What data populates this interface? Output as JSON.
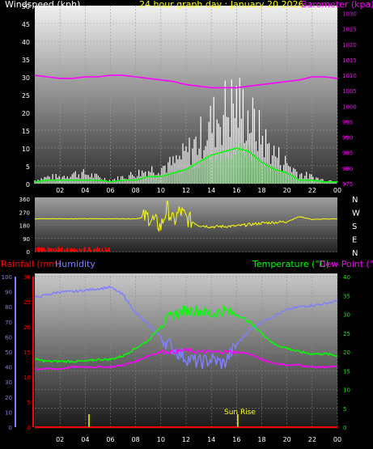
{
  "header": {
    "left_title": "Windspeed (kph)",
    "center_title": "24 hour graph day : January 20 2026",
    "right_title": "Barometer (kpa)"
  },
  "colors": {
    "windspeed": "#ffffff",
    "wind_avg": "#00ff00",
    "barometer": "#ff00ff",
    "direction": "#ffff00",
    "rainfall": "#ff0000",
    "humidity": "#7f7fff",
    "temperature": "#00ff00",
    "dewpoint": "#ff00ff",
    "title": "#ffff00"
  },
  "chart_data": [
    {
      "type": "line",
      "panel": "wind-barometer",
      "x_ticks": [
        "02",
        "04",
        "06",
        "08",
        "10",
        "12",
        "14",
        "16",
        "18",
        "20",
        "22",
        "00"
      ],
      "y_left_ticks": [
        "0",
        "5",
        "10",
        "15",
        "20",
        "25",
        "30",
        "35",
        "40",
        "45",
        "50"
      ],
      "y_right_ticks": [
        "975",
        "980",
        "985",
        "990",
        "995",
        "1000",
        "1005",
        "1010",
        "1015",
        "1020",
        "1025",
        "1030"
      ],
      "ylim_left": [
        0,
        50
      ],
      "ylim_right": [
        975,
        1032.5
      ],
      "x_hours": [
        0,
        1,
        2,
        3,
        4,
        5,
        6,
        7,
        8,
        9,
        10,
        11,
        12,
        13,
        14,
        15,
        16,
        17,
        18,
        19,
        20,
        21,
        22,
        23,
        24
      ],
      "series": [
        {
          "name": "Windspeed (kph)",
          "axis": "left",
          "values": [
            1,
            2,
            2,
            3,
            3,
            2,
            1,
            2,
            3,
            4,
            5,
            6,
            9,
            13,
            18,
            22,
            24,
            20,
            14,
            9,
            6,
            3,
            2,
            1,
            1
          ]
        },
        {
          "name": "",
          "axis": "left",
          "values": [
            0.5,
            1,
            1,
            1,
            1,
            1,
            0.5,
            1,
            1,
            2,
            2,
            3,
            4,
            6,
            8,
            9,
            10,
            9,
            6,
            4,
            3,
            1,
            1,
            0.5,
            0.5
          ]
        },
        {
          "name": "Barometer (kpa)",
          "axis": "right",
          "values": [
            1010,
            1009.5,
            1009,
            1009,
            1009.5,
            1009.5,
            1010,
            1010,
            1009.5,
            1009,
            1008.5,
            1008,
            1007,
            1006.5,
            1006,
            1006,
            1006,
            1006.5,
            1007,
            1007.5,
            1008,
            1008.5,
            1009.5,
            1009.5,
            1009
          ]
        }
      ]
    },
    {
      "type": "line",
      "panel": "direction",
      "y_left_ticks": [
        "0",
        "90",
        "180",
        "270",
        "360"
      ],
      "ylim_left": [
        0,
        360
      ],
      "compass_labels": [
        "N",
        "W",
        "S",
        "E",
        "N"
      ],
      "x_hours": [
        0,
        2,
        4,
        6,
        8,
        9,
        10,
        10.5,
        11,
        11.5,
        12,
        13,
        14,
        16,
        18,
        20,
        21,
        22,
        24
      ],
      "series": [
        {
          "name": "",
          "values": [
            225,
            225,
            225,
            225,
            225,
            240,
            170,
            300,
            200,
            280,
            230,
            180,
            170,
            175,
            195,
            205,
            240,
            220,
            225
          ]
        }
      ]
    },
    {
      "type": "line",
      "panel": "rain-humidity-temp",
      "header": {
        "rainfall_label": "Rainfall (mm)",
        "humidity_label": "Humidity",
        "temperature_label": "Temperature (°C)",
        "dewpoint_label": "Dew Point (°C)"
      },
      "annotation": "Sun Rise",
      "x_ticks": [
        "02",
        "04",
        "06",
        "08",
        "10",
        "12",
        "14",
        "16",
        "18",
        "20",
        "22",
        "00"
      ],
      "humidity_ticks": [
        "0",
        "10",
        "20",
        "30",
        "40",
        "50",
        "60",
        "70",
        "80",
        "90",
        "100"
      ],
      "rain_ticks": [
        "0",
        "5",
        "10",
        "15",
        "20",
        "25",
        "30"
      ],
      "temp_ticks": [
        "0",
        "5",
        "10",
        "15",
        "20",
        "25",
        "30",
        "35",
        "40"
      ],
      "ylim_humidity": [
        0,
        100
      ],
      "ylim_rain": [
        0,
        30
      ],
      "ylim_temp": [
        0,
        40
      ],
      "x_hours": [
        0,
        1,
        2,
        3,
        4,
        5,
        6,
        7,
        8,
        9,
        10,
        11,
        12,
        13,
        14,
        15,
        16,
        17,
        18,
        19,
        20,
        21,
        22,
        23,
        24
      ],
      "series": [
        {
          "name": "Humidity",
          "axis": "humidity",
          "values": [
            86,
            88,
            90,
            90,
            91,
            92,
            93,
            88,
            76,
            68,
            60,
            52,
            46,
            43,
            45,
            42,
            55,
            64,
            70,
            74,
            78,
            80,
            81,
            82,
            84
          ]
        },
        {
          "name": "Temperature (°C)",
          "axis": "temp",
          "values": [
            18,
            17.5,
            17.5,
            17.5,
            17.5,
            18,
            18,
            19,
            21,
            23,
            27,
            30,
            31,
            31,
            30,
            31,
            30,
            28,
            25,
            22,
            21,
            20,
            19.5,
            19.5,
            19
          ]
        },
        {
          "name": "Dew Point (°C)",
          "axis": "temp",
          "values": [
            15.5,
            15.5,
            15.5,
            16,
            16,
            16,
            16,
            16.5,
            17.5,
            19,
            20,
            20,
            20.5,
            20,
            20,
            20,
            20,
            19.5,
            18,
            17,
            16.5,
            16.5,
            16,
            16,
            16
          ]
        },
        {
          "name": "Rainfall (mm)",
          "axis": "rain",
          "values": [
            0,
            0,
            0,
            0,
            0,
            0,
            0,
            0,
            0,
            0,
            0,
            0,
            0,
            0,
            0,
            0,
            0,
            0,
            0,
            0,
            0,
            0,
            0,
            0,
            0
          ]
        }
      ]
    }
  ]
}
